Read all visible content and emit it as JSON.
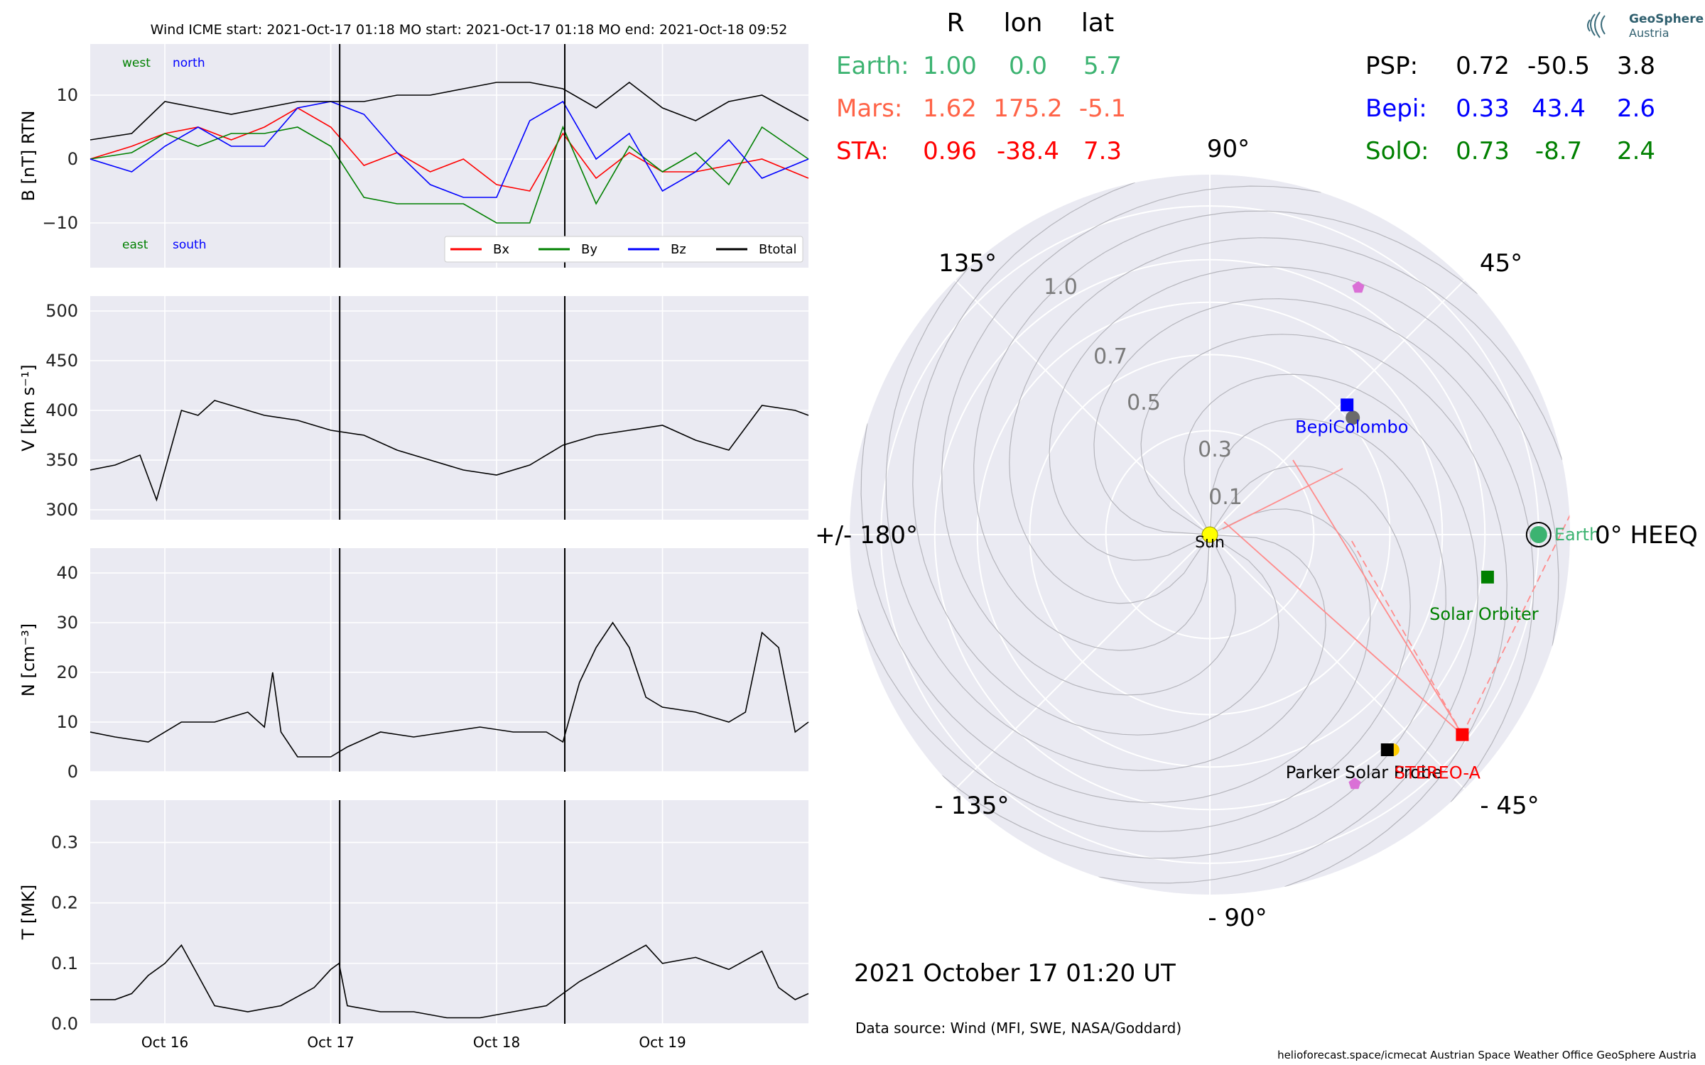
{
  "header": {
    "title": "Wind    ICME start: 2021-Oct-17 01:18   MO start: 2021-Oct-17 01:18   MO end: 2021-Oct-18 09:52"
  },
  "logo": {
    "line1": "GeoSphere",
    "line2": "Austria"
  },
  "positions_table": {
    "headers": [
      "R",
      "lon",
      "lat"
    ],
    "left_rows": [
      {
        "name": "Earth:",
        "R": "1.00",
        "lon": "0.0",
        "lat": "5.7",
        "color": "#3cb371"
      },
      {
        "name": "Mars:",
        "R": "1.62",
        "lon": "175.2",
        "lat": "-5.1",
        "color": "#ff6347"
      },
      {
        "name": "STA:",
        "R": "0.96",
        "lon": "-38.4",
        "lat": "7.3",
        "color": "#ff0000"
      }
    ],
    "right_rows": [
      {
        "name": "PSP:",
        "R": "0.72",
        "lon": "-50.5",
        "lat": "3.8",
        "color": "#000000"
      },
      {
        "name": "Bepi:",
        "R": "0.33",
        "lon": "43.4",
        "lat": "2.6",
        "color": "#0000ff"
      },
      {
        "name": "SolO:",
        "R": "0.73",
        "lon": "-8.7",
        "lat": "2.4",
        "color": "#008000"
      }
    ]
  },
  "chart_data": [
    {
      "type": "line",
      "ylabel": "B [nT] RTN",
      "ylim": [
        -17,
        18
      ],
      "yticks": [
        "10",
        "0",
        "−10"
      ],
      "xlim_days": [
        15.55,
        19.88
      ],
      "xticks": [
        "Oct 16",
        "Oct 17",
        "Oct 18",
        "Oct 19"
      ],
      "annotations": {
        "top_left": [
          "west",
          "north"
        ],
        "bottom_left": [
          "east",
          "south"
        ]
      },
      "legend": {
        "placement": "lower-right",
        "entries": [
          "Bx",
          "By",
          "Bz",
          "Btotal"
        ]
      },
      "series": [
        {
          "name": "Bx",
          "color": "#ff0000",
          "x": [
            15.55,
            15.8,
            16.0,
            16.2,
            16.4,
            16.6,
            16.8,
            17.0,
            17.2,
            17.4,
            17.6,
            17.8,
            18.0,
            18.2,
            18.4,
            18.6,
            18.8,
            19.0,
            19.2,
            19.4,
            19.6,
            19.88
          ],
          "values": [
            0,
            2,
            4,
            5,
            3,
            5,
            8,
            5,
            -1,
            1,
            -2,
            0,
            -4,
            -5,
            4,
            -3,
            1,
            -2,
            -2,
            -1,
            0,
            -3
          ]
        },
        {
          "name": "By",
          "color": "#008000",
          "x": [
            15.55,
            15.8,
            16.0,
            16.2,
            16.4,
            16.6,
            16.8,
            17.0,
            17.2,
            17.4,
            17.6,
            17.8,
            18.0,
            18.2,
            18.4,
            18.6,
            18.8,
            19.0,
            19.2,
            19.4,
            19.6,
            19.88
          ],
          "values": [
            0,
            1,
            4,
            2,
            4,
            4,
            5,
            2,
            -6,
            -7,
            -7,
            -7,
            -10,
            -10,
            5,
            -7,
            2,
            -2,
            1,
            -4,
            5,
            0
          ]
        },
        {
          "name": "Bz",
          "color": "#0000ff",
          "x": [
            15.55,
            15.8,
            16.0,
            16.2,
            16.4,
            16.6,
            16.8,
            17.0,
            17.2,
            17.4,
            17.6,
            17.8,
            18.0,
            18.2,
            18.4,
            18.6,
            18.8,
            19.0,
            19.2,
            19.4,
            19.6,
            19.88
          ],
          "values": [
            0,
            -2,
            2,
            5,
            2,
            2,
            8,
            9,
            7,
            1,
            -4,
            -6,
            -6,
            6,
            9,
            0,
            4,
            -5,
            -2,
            3,
            -3,
            0
          ]
        },
        {
          "name": "Btotal",
          "color": "#000000",
          "x": [
            15.55,
            15.8,
            16.0,
            16.2,
            16.4,
            16.6,
            16.8,
            17.0,
            17.2,
            17.4,
            17.6,
            17.8,
            18.0,
            18.2,
            18.4,
            18.6,
            18.8,
            19.0,
            19.2,
            19.4,
            19.6,
            19.88
          ],
          "values": [
            3,
            4,
            9,
            8,
            7,
            8,
            9,
            9,
            9,
            10,
            10,
            11,
            12,
            12,
            11,
            8,
            12,
            8,
            6,
            9,
            10,
            6
          ]
        }
      ],
      "vlines_days": [
        17.054,
        18.411
      ]
    },
    {
      "type": "line",
      "ylabel": "V [km s⁻¹]",
      "ylim": [
        290,
        515
      ],
      "yticks": [
        "500",
        "450",
        "400",
        "350",
        "300"
      ],
      "series": [
        {
          "name": "",
          "color": "#000000",
          "x": [
            15.55,
            15.7,
            15.85,
            15.95,
            16.0,
            16.1,
            16.2,
            16.3,
            16.4,
            16.5,
            16.6,
            16.8,
            16.9,
            17.0,
            17.2,
            17.4,
            17.6,
            17.8,
            18.0,
            18.2,
            18.4,
            18.6,
            18.8,
            19.0,
            19.2,
            19.4,
            19.6,
            19.8,
            19.88
          ],
          "values": [
            340,
            345,
            355,
            310,
            340,
            400,
            395,
            410,
            405,
            400,
            395,
            390,
            385,
            380,
            375,
            360,
            350,
            340,
            335,
            345,
            365,
            375,
            380,
            385,
            370,
            360,
            405,
            400,
            395
          ]
        }
      ],
      "vlines_days": [
        17.054,
        18.411
      ]
    },
    {
      "type": "line",
      "ylabel": "N [cm⁻³]",
      "ylim": [
        0,
        45
      ],
      "yticks": [
        "40",
        "30",
        "20",
        "10",
        "0"
      ],
      "series": [
        {
          "name": "",
          "color": "#000000",
          "x": [
            15.55,
            15.7,
            15.9,
            16.1,
            16.3,
            16.5,
            16.6,
            16.65,
            16.7,
            16.8,
            17.0,
            17.1,
            17.3,
            17.5,
            17.7,
            17.9,
            18.1,
            18.3,
            18.4,
            18.5,
            18.6,
            18.7,
            18.8,
            18.9,
            19.0,
            19.2,
            19.4,
            19.5,
            19.6,
            19.7,
            19.8,
            19.88
          ],
          "values": [
            8,
            7,
            6,
            10,
            10,
            12,
            9,
            20,
            8,
            3,
            3,
            5,
            8,
            7,
            8,
            9,
            8,
            8,
            6,
            18,
            25,
            30,
            25,
            15,
            13,
            12,
            10,
            12,
            28,
            25,
            8,
            10
          ]
        }
      ],
      "vlines_days": [
        17.054,
        18.411
      ]
    },
    {
      "type": "line",
      "ylabel": "T [MK]",
      "ylim": [
        0,
        0.37
      ],
      "yticks": [
        "0.3",
        "0.2",
        "0.1",
        "0.0"
      ],
      "xticks": [
        "Oct 16",
        "Oct 17",
        "Oct 18",
        "Oct 19"
      ],
      "series": [
        {
          "name": "",
          "color": "#000000",
          "x": [
            15.55,
            15.7,
            15.8,
            15.9,
            16.0,
            16.1,
            16.2,
            16.3,
            16.5,
            16.7,
            16.9,
            17.0,
            17.05,
            17.1,
            17.3,
            17.5,
            17.7,
            17.9,
            18.1,
            18.3,
            18.4,
            18.5,
            18.7,
            18.9,
            19.0,
            19.2,
            19.4,
            19.6,
            19.7,
            19.8,
            19.88
          ],
          "values": [
            0.04,
            0.04,
            0.05,
            0.08,
            0.1,
            0.13,
            0.08,
            0.03,
            0.02,
            0.03,
            0.06,
            0.09,
            0.1,
            0.03,
            0.02,
            0.02,
            0.01,
            0.01,
            0.02,
            0.03,
            0.05,
            0.07,
            0.1,
            0.13,
            0.1,
            0.11,
            0.09,
            0.12,
            0.06,
            0.04,
            0.05
          ]
        }
      ],
      "vlines_days": [
        17.054,
        18.411
      ]
    },
    {
      "type": "scatter",
      "subtype": "polar",
      "r_ticks": [
        "0.1",
        "0.3",
        "0.5",
        "0.7",
        "1.0"
      ],
      "r_tick_values": [
        0.1,
        0.3,
        0.5,
        0.7,
        1.0
      ],
      "angle_labels": {
        "a90": "90°",
        "a45": "45°",
        "a0": "0° HEEQ",
        "am45": "- 45°",
        "am90": "- 90°",
        "am135": "- 135°",
        "a180": "+/- 180°",
        "a135": "135°"
      },
      "points": [
        {
          "label": "Sun",
          "lon": 0,
          "r": 0.0,
          "color": "#ffff00",
          "marker": "circle"
        },
        {
          "label": "Earth",
          "lon": 0.0,
          "r": 1.0,
          "color": "#3cb371",
          "marker": "circle"
        },
        {
          "label": "BepiColombo",
          "lon": 43.4,
          "r": 0.33,
          "color": "#0000ff",
          "marker": "square"
        },
        {
          "label": "Solar Orbiter",
          "lon": -8.7,
          "r": 0.73,
          "color": "#008000",
          "marker": "square"
        },
        {
          "label": "Parker Solar Probe",
          "lon": -50.5,
          "r": 0.72,
          "color": "#000000",
          "marker": "square"
        },
        {
          "label": "STEREO-A",
          "lon": -38.4,
          "r": 0.96,
          "color": "#ff0000",
          "marker": "square"
        }
      ],
      "datetime": "2021 October 17  01:20 UT"
    }
  ],
  "footer": {
    "source": "Data source: Wind (MFI, SWE, NASA/Goddard)",
    "credits": "helioforecast.space/icmecat   Austrian Space Weather Office   GeoSphere Austria"
  }
}
